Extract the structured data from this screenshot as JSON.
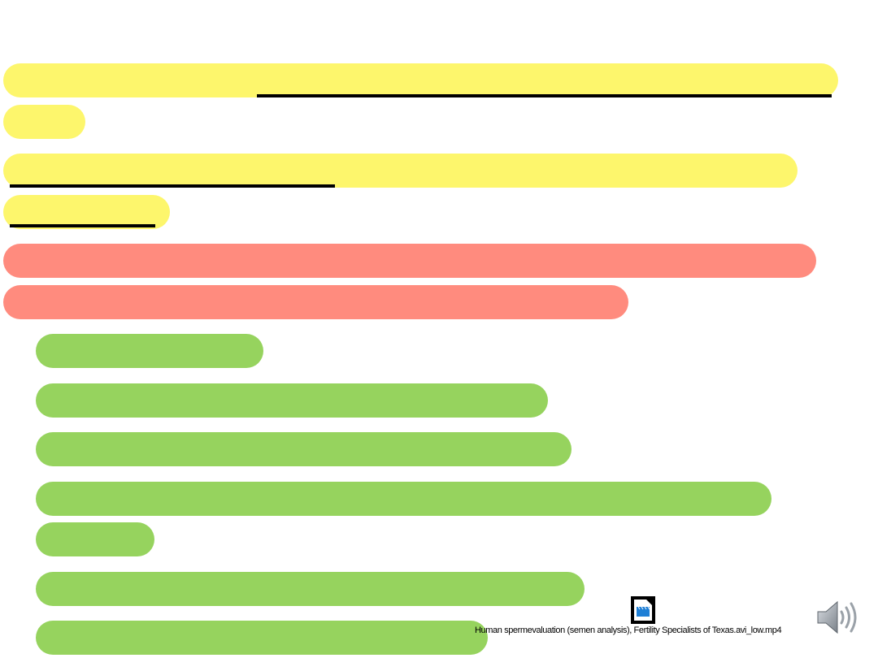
{
  "media": {
    "video_caption": "Human spermevaluation (semen analysis), Fertility Specialists of Texas.avi_low.mp4",
    "video_icon": "video-file-icon",
    "audio_icon": "speaker-icon"
  },
  "colors": {
    "highlight_yellow": "#fdf66c",
    "highlight_red": "#ff8b7e",
    "highlight_green": "#96d35e"
  }
}
